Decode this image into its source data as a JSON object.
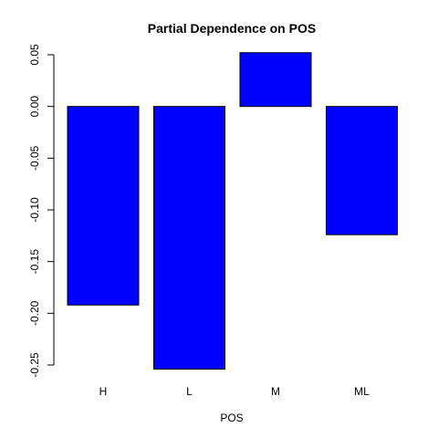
{
  "chart_data": {
    "type": "bar",
    "title": "Partial Dependence on POS",
    "xlabel": "POS",
    "ylabel": "",
    "categories": [
      "H",
      "L",
      "M",
      "ML"
    ],
    "values": [
      -0.192,
      -0.254,
      0.052,
      -0.124
    ],
    "ylim": [
      -0.25,
      0.05
    ],
    "yticks": [
      -0.25,
      -0.2,
      -0.15,
      -0.1,
      -0.05,
      0.0,
      0.05
    ],
    "ytick_labels": [
      "-0.25",
      "-0.20",
      "-0.15",
      "-0.10",
      "-0.05",
      "0.00",
      "0.05"
    ],
    "bar_color": "#0000ff",
    "grid": false,
    "legend": "none"
  }
}
